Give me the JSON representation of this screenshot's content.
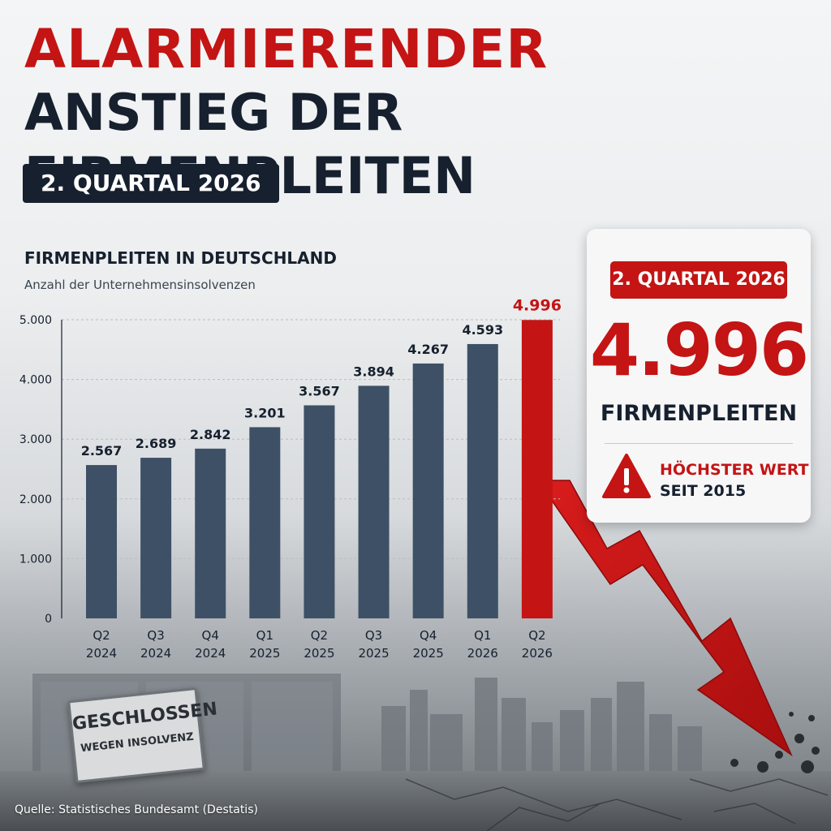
{
  "headline": {
    "line1": "ALARMIERENDER",
    "line2": "ANSTIEG DER FIRMENPLEITEN",
    "period": "2. QUARTAL 2026"
  },
  "chart_data": {
    "type": "bar",
    "title": "FIRMENPLEITEN IN DEUTSCHLAND",
    "subtitle": "Anzahl der Unternehmensinsolvenzen",
    "categories": [
      "Q2\n2024",
      "Q3\n2024",
      "Q4\n2024",
      "Q1\n2025",
      "Q2\n2025",
      "Q3\n2025",
      "Q4\n2025",
      "Q1\n2026",
      "Q2\n2026"
    ],
    "values": [
      2567,
      2689,
      2842,
      3201,
      3567,
      3894,
      4267,
      4593,
      4996
    ],
    "value_labels": [
      "2.567",
      "2.689",
      "2.842",
      "3.201",
      "3.567",
      "3.894",
      "4.267",
      "4.593",
      "4.996"
    ],
    "yticks": [
      0,
      1000,
      2000,
      3000,
      4000,
      5000
    ],
    "ytick_labels": [
      "0",
      "1.000",
      "2.000",
      "3.000",
      "4.000",
      "5.000"
    ],
    "ylim": [
      0,
      5000
    ],
    "grid": true,
    "highlight_index": 8,
    "colors": {
      "bar": "#3d5066",
      "highlight": "#c41414",
      "label": "#16202e"
    }
  },
  "callout": {
    "badge": "2. QUARTAL 2026",
    "value": "4.996",
    "label": "FIRMENPLEITEN",
    "warning_line1": "HÖCHSTER WERT",
    "warning_line2": "SEIT 2015",
    "icon": "warning-triangle-icon"
  },
  "sign": {
    "line1": "GESCHLOSSEN",
    "line2": "WEGEN INSOLVENZ"
  },
  "source": "Quelle: Statistisches Bundesamt (Destatis)",
  "colors": {
    "accent": "#c41414",
    "dark": "#16202e"
  }
}
